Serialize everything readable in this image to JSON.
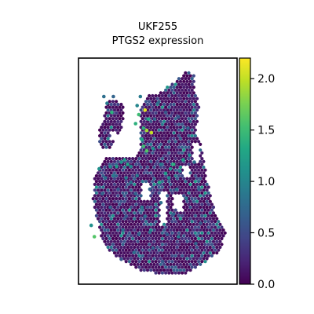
{
  "chart_data": {
    "type": "scatter",
    "title_lines": [
      "UKF255",
      "PTGS2 expression"
    ],
    "xlabel": "",
    "ylabel": "",
    "grid": false,
    "colorbar": {
      "colormap": "viridis",
      "range": [
        0.0,
        2.2
      ],
      "ticks": [
        0.0,
        0.5,
        1.0,
        1.5,
        2.0
      ],
      "tick_labels": [
        "0.0",
        "0.5",
        "1.0",
        "1.5",
        "2.0"
      ]
    },
    "notes_hidden": "",
    "series": [
      {
        "points": [
          [
            0.42,
            0.23,
            2.1
          ],
          [
            0.46,
            0.33,
            2.0
          ],
          [
            0.43,
            0.32,
            1.9
          ],
          [
            0.38,
            0.25,
            1.5
          ],
          [
            0.36,
            0.29,
            1.4
          ],
          [
            0.41,
            0.39,
            1.5
          ],
          [
            0.43,
            0.41,
            1.6
          ],
          [
            0.29,
            0.45,
            1.2
          ],
          [
            0.31,
            0.47,
            1.3
          ],
          [
            0.27,
            0.46,
            1.1
          ],
          [
            0.33,
            0.48,
            1.0
          ],
          [
            0.55,
            0.51,
            1.2
          ],
          [
            0.51,
            0.55,
            1.3
          ],
          [
            0.57,
            0.53,
            1.0
          ],
          [
            0.1,
            0.79,
            1.6
          ],
          [
            0.08,
            0.74,
            1.1
          ],
          [
            0.6,
            0.47,
            1.4
          ],
          [
            0.66,
            0.45,
            1.2
          ],
          [
            0.7,
            0.43,
            1.0
          ],
          [
            0.62,
            0.58,
            0.8
          ],
          [
            0.4,
            0.66,
            0.9
          ],
          [
            0.42,
            0.7,
            0.8
          ],
          [
            0.36,
            0.6,
            0.7
          ],
          [
            0.25,
            0.58,
            0.6
          ],
          [
            0.22,
            0.52,
            0.9
          ],
          [
            0.15,
            0.6,
            0.7
          ],
          [
            0.17,
            0.53,
            0.8
          ],
          [
            0.47,
            0.84,
            0.7
          ],
          [
            0.35,
            0.86,
            0.8
          ],
          [
            0.27,
            0.89,
            0.6
          ],
          [
            0.53,
            0.9,
            0.6
          ],
          [
            0.56,
            0.78,
            0.6
          ],
          [
            0.63,
            0.79,
            0.9
          ],
          [
            0.74,
            0.82,
            0.7
          ],
          [
            0.77,
            0.73,
            0.6
          ],
          [
            0.48,
            0.27,
            0.7
          ],
          [
            0.5,
            0.2,
            0.8
          ],
          [
            0.55,
            0.24,
            0.6
          ],
          [
            0.37,
            0.21,
            1.0
          ],
          [
            0.39,
            0.17,
            0.9
          ],
          [
            0.18,
            0.2,
            0.9
          ],
          [
            0.21,
            0.24,
            1.4
          ],
          [
            0.16,
            0.17,
            0.8
          ],
          [
            0.22,
            0.17,
            0.7
          ],
          [
            0.41,
            0.31,
            1.4
          ],
          [
            0.44,
            0.27,
            1.3
          ],
          [
            0.4,
            0.36,
            1.3
          ],
          [
            0.47,
            0.4,
            1.1
          ],
          [
            0.52,
            0.47,
            0.9
          ],
          [
            0.58,
            0.49,
            1.1
          ],
          [
            0.64,
            0.5,
            0.9
          ],
          [
            0.73,
            0.46,
            0.8
          ],
          [
            0.69,
            0.31,
            0.7
          ],
          [
            0.63,
            0.26,
            0.6
          ],
          [
            0.24,
            0.48,
            1.2
          ],
          [
            0.2,
            0.48,
            1.0
          ],
          [
            0.13,
            0.49,
            1.1
          ],
          [
            0.3,
            0.53,
            0.9
          ],
          [
            0.33,
            0.55,
            0.8
          ],
          [
            0.37,
            0.52,
            0.9
          ],
          [
            0.45,
            0.58,
            0.7
          ],
          [
            0.52,
            0.64,
            0.8
          ],
          [
            0.3,
            0.7,
            0.6
          ],
          [
            0.2,
            0.66,
            0.7
          ],
          [
            0.28,
            0.76,
            0.8
          ],
          [
            0.38,
            0.78,
            0.7
          ],
          [
            0.45,
            0.77,
            0.8
          ],
          [
            0.6,
            0.69,
            0.7
          ],
          [
            0.68,
            0.62,
            0.9
          ],
          [
            0.76,
            0.58,
            0.7
          ]
        ]
      }
    ]
  }
}
